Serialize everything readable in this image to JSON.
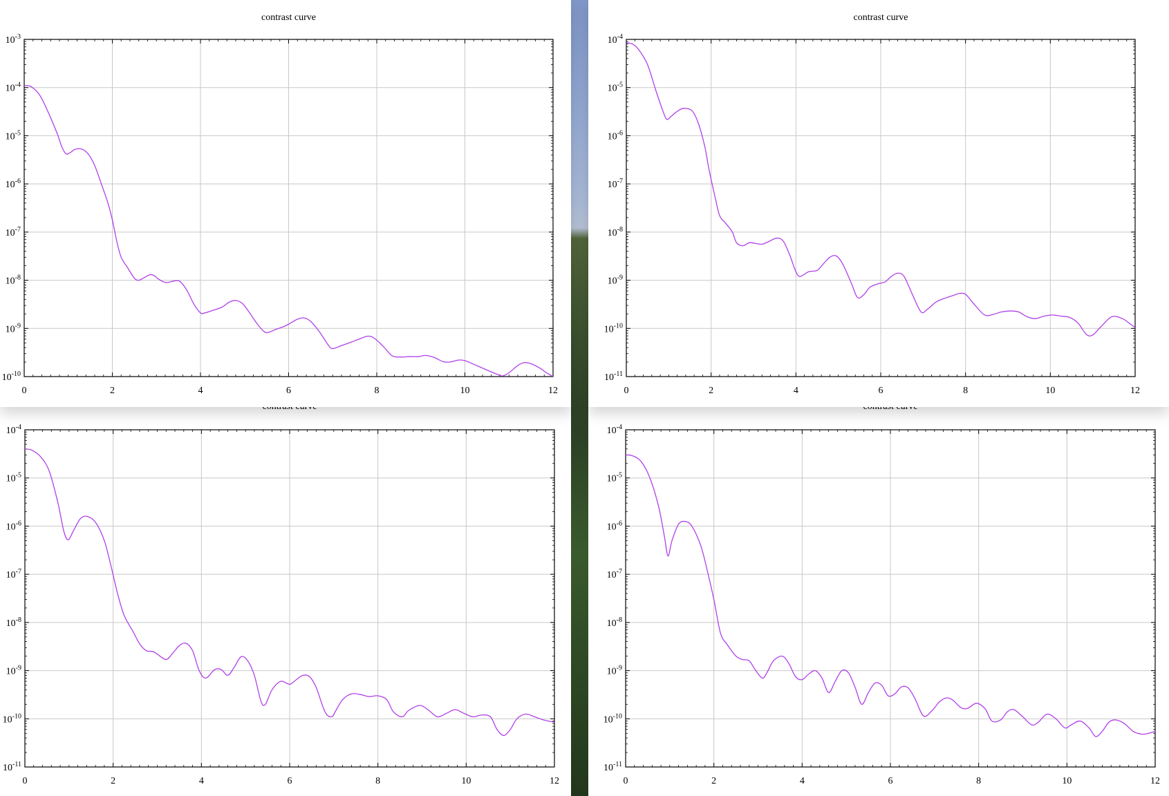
{
  "colors": {
    "curve": "#b040e8",
    "grid": "#c8c8c8",
    "axis": "#000000"
  },
  "chart_data": [
    {
      "id": "top-left",
      "type": "line",
      "title": "contrast curve",
      "xlabel": "",
      "ylabel": "",
      "xlim": [
        0,
        12
      ],
      "xticks": [
        "0",
        "2",
        "4",
        "6",
        "8",
        "10",
        "12"
      ],
      "yscale": "log",
      "ylim_exp": [
        -10,
        -3
      ],
      "yticks": [
        {
          "base": "10",
          "exp": "-3"
        },
        {
          "base": "10",
          "exp": "-4"
        },
        {
          "base": "10",
          "exp": "-5"
        },
        {
          "base": "10",
          "exp": "-6"
        },
        {
          "base": "10",
          "exp": "-7"
        },
        {
          "base": "10",
          "exp": "-8"
        },
        {
          "base": "10",
          "exp": "-9"
        },
        {
          "base": "10",
          "exp": "-10"
        }
      ],
      "grid": true,
      "series": [
        {
          "x": [
            0,
            0.15,
            0.35,
            0.55,
            0.75,
            0.85,
            0.95,
            1.05,
            1.15,
            1.3,
            1.45,
            1.6,
            1.75,
            1.9,
            2.0,
            2.1,
            2.2,
            2.35,
            2.5,
            2.6,
            2.7,
            2.85,
            2.95,
            3.05,
            3.2,
            3.3,
            3.45,
            3.55,
            3.7,
            3.85,
            4.0,
            4.1,
            4.3,
            4.5,
            4.65,
            4.8,
            4.95,
            5.1,
            5.3,
            5.45,
            5.55,
            5.7,
            5.9,
            6.05,
            6.2,
            6.35,
            6.5,
            6.7,
            6.9,
            7.0,
            7.2,
            7.4,
            7.6,
            7.8,
            7.95,
            8.15,
            8.35,
            8.55,
            8.75,
            8.95,
            9.1,
            9.3,
            9.5,
            9.65,
            9.85,
            10.0,
            10.2,
            10.4,
            10.6,
            10.75,
            10.85,
            11.0,
            11.2,
            11.35,
            11.5,
            11.7,
            11.85,
            12.0
          ],
          "y": [
            0.00011,
            0.000105,
            7e-05,
            3e-05,
            1.1e-05,
            6e-06,
            4.2e-06,
            4.5e-06,
            5.2e-06,
            5.3e-06,
            4.2e-06,
            2.4e-06,
            1e-06,
            4e-07,
            1.8e-07,
            6.5e-08,
            3e-08,
            1.8e-08,
            1.1e-08,
            1e-08,
            1.1e-08,
            1.3e-08,
            1.25e-08,
            1.05e-08,
            9e-09,
            9.2e-09,
            9.8e-09,
            9.2e-09,
            6e-09,
            3.2e-09,
            2.1e-09,
            2.1e-09,
            2.4e-09,
            2.8e-09,
            3.5e-09,
            3.8e-09,
            3.3e-09,
            2.2e-09,
            1.2e-09,
            8.5e-10,
            8.3e-10,
            9.5e-10,
            1.1e-09,
            1.3e-09,
            1.55e-09,
            1.65e-09,
            1.4e-09,
            8.5e-10,
            4.5e-10,
            3.8e-10,
            4.4e-10,
            5.1e-10,
            6e-10,
            6.9e-10,
            6.2e-10,
            4.2e-10,
            2.7e-10,
            2.55e-10,
            2.6e-10,
            2.6e-10,
            2.75e-10,
            2.5e-10,
            2.05e-10,
            2e-10,
            2.2e-10,
            2.15e-10,
            1.8e-10,
            1.5e-10,
            1.25e-10,
            1.1e-10,
            1.03e-10,
            1.2e-10,
            1.7e-10,
            1.95e-10,
            1.85e-10,
            1.5e-10,
            1.2e-10,
            1e-10
          ]
        }
      ]
    },
    {
      "id": "top-right",
      "type": "line",
      "title": "contrast curve",
      "xlabel": "",
      "ylabel": "",
      "xlim": [
        0,
        12
      ],
      "xticks": [
        "0",
        "2",
        "4",
        "6",
        "8",
        "10",
        "12"
      ],
      "yscale": "log",
      "ylim_exp": [
        -11,
        -4
      ],
      "yticks": [
        {
          "base": "10",
          "exp": "-4"
        },
        {
          "base": "10",
          "exp": "-5"
        },
        {
          "base": "10",
          "exp": "-6"
        },
        {
          "base": "10",
          "exp": "-7"
        },
        {
          "base": "10",
          "exp": "-8"
        },
        {
          "base": "10",
          "exp": "-9"
        },
        {
          "base": "10",
          "exp": "-10"
        },
        {
          "base": "10",
          "exp": "-11"
        }
      ],
      "grid": true,
      "series": [
        {
          "x": [
            0,
            0.15,
            0.3,
            0.5,
            0.7,
            0.85,
            0.95,
            1.05,
            1.2,
            1.35,
            1.55,
            1.7,
            1.85,
            1.95,
            2.1,
            2.2,
            2.35,
            2.5,
            2.6,
            2.75,
            2.9,
            3.05,
            3.2,
            3.35,
            3.55,
            3.7,
            3.85,
            4.0,
            4.1,
            4.3,
            4.5,
            4.65,
            4.8,
            4.95,
            5.1,
            5.3,
            5.45,
            5.6,
            5.75,
            5.95,
            6.1,
            6.25,
            6.4,
            6.55,
            6.75,
            6.95,
            7.1,
            7.3,
            7.5,
            7.7,
            7.85,
            8.0,
            8.2,
            8.45,
            8.65,
            8.85,
            9.05,
            9.25,
            9.45,
            9.65,
            9.85,
            10.05,
            10.25,
            10.45,
            10.65,
            10.85,
            11.0,
            11.2,
            11.45,
            11.7,
            11.85,
            12.0
          ],
          "y": [
            8.5e-05,
            8e-05,
            6e-05,
            3e-05,
            8.5e-06,
            3.5e-06,
            2.2e-06,
            2.5e-06,
            3.2e-06,
            3.7e-06,
            3.3e-06,
            1.8e-06,
            6e-07,
            2e-07,
            5e-08,
            2.2e-08,
            1.5e-08,
            1e-08,
            6e-09,
            5.2e-09,
            6e-09,
            5.8e-09,
            5.6e-09,
            6.3e-09,
            7.5e-09,
            6.5e-09,
            3.4e-09,
            1.5e-09,
            1.2e-09,
            1.5e-09,
            1.6e-09,
            2.2e-09,
            3e-09,
            3.2e-09,
            2.2e-09,
            9e-10,
            4.4e-10,
            5e-10,
            7.2e-10,
            8.5e-10,
            9.2e-10,
            1.2e-09,
            1.4e-09,
            1.2e-09,
            5e-10,
            2.2e-10,
            2.5e-10,
            3.5e-10,
            4.2e-10,
            4.8e-10,
            5.3e-10,
            5.1e-10,
            3.2e-10,
            1.9e-10,
            1.95e-10,
            2.2e-10,
            2.3e-10,
            2.2e-10,
            1.75e-10,
            1.6e-10,
            1.8e-10,
            1.9e-10,
            1.8e-10,
            1.7e-10,
            1.3e-10,
            7.5e-11,
            7.3e-11,
            1.1e-10,
            1.75e-10,
            1.6e-10,
            1.3e-10,
            1.05e-10
          ]
        }
      ]
    },
    {
      "id": "bottom-left",
      "type": "line",
      "title": "contrast curve",
      "xlabel": "",
      "ylabel": "",
      "xlim": [
        0,
        12
      ],
      "xticks": [
        "0",
        "2",
        "4",
        "6",
        "8",
        "10",
        "12"
      ],
      "yscale": "log",
      "ylim_exp": [
        -11,
        -4
      ],
      "yticks": [
        {
          "base": "10",
          "exp": "-4"
        },
        {
          "base": "10",
          "exp": "-5"
        },
        {
          "base": "10",
          "exp": "-6"
        },
        {
          "base": "10",
          "exp": "-7"
        },
        {
          "base": "10",
          "exp": "-8"
        },
        {
          "base": "10",
          "exp": "-9"
        },
        {
          "base": "10",
          "exp": "-10"
        },
        {
          "base": "10",
          "exp": "-11"
        }
      ],
      "grid": true,
      "series": [
        {
          "x": [
            0,
            0.15,
            0.35,
            0.55,
            0.75,
            0.88,
            0.98,
            1.1,
            1.25,
            1.4,
            1.6,
            1.8,
            1.95,
            2.1,
            2.25,
            2.45,
            2.6,
            2.75,
            2.9,
            3.0,
            3.2,
            3.35,
            3.5,
            3.65,
            3.8,
            3.95,
            4.1,
            4.3,
            4.45,
            4.6,
            4.75,
            4.9,
            5.05,
            5.2,
            5.35,
            5.45,
            5.6,
            5.8,
            6.0,
            6.15,
            6.3,
            6.45,
            6.6,
            6.8,
            6.95,
            7.05,
            7.2,
            7.4,
            7.6,
            7.8,
            8.0,
            8.2,
            8.35,
            8.55,
            8.7,
            8.95,
            9.15,
            9.35,
            9.55,
            9.75,
            9.95,
            10.15,
            10.35,
            10.55,
            10.7,
            10.85,
            11.0,
            11.15,
            11.35,
            11.55,
            11.75,
            12.0
          ],
          "y": [
            4e-05,
            3.8e-05,
            2.8e-05,
            1.4e-05,
            3e-06,
            8e-07,
            5.2e-07,
            8e-07,
            1.4e-06,
            1.6e-06,
            1.2e-06,
            5e-07,
            1.5e-07,
            4e-08,
            1.4e-08,
            6.5e-09,
            3.6e-09,
            2.6e-09,
            2.5e-09,
            2.2e-09,
            1.7e-09,
            2.3e-09,
            3.3e-09,
            3.7e-09,
            2.6e-09,
            1e-09,
            7e-10,
            1.05e-09,
            1.05e-09,
            8e-10,
            1.2e-09,
            1.95e-09,
            1.6e-09,
            8e-10,
            2.3e-10,
            2e-10,
            4e-10,
            6e-10,
            5.2e-10,
            6.5e-10,
            8e-10,
            7.5e-10,
            4.5e-10,
            1.4e-10,
            1.1e-10,
            1.5e-10,
            2.5e-10,
            3.3e-10,
            3.2e-10,
            2.9e-10,
            3e-10,
            2.5e-10,
            1.4e-10,
            1.1e-10,
            1.5e-10,
            1.9e-10,
            1.5e-10,
            1.1e-10,
            1.3e-10,
            1.55e-10,
            1.3e-10,
            1.1e-10,
            1.2e-10,
            1.1e-10,
            6e-11,
            4.5e-11,
            6e-11,
            1e-10,
            1.25e-10,
            1.1e-10,
            9.5e-11,
            8.5e-11
          ]
        }
      ]
    },
    {
      "id": "bottom-right",
      "type": "line",
      "title": "contrast curve",
      "xlabel": "",
      "ylabel": "",
      "xlim": [
        0,
        12
      ],
      "xticks": [
        "0",
        "2",
        "4",
        "6",
        "8",
        "10",
        "12"
      ],
      "yscale": "log",
      "ylim_exp": [
        -11,
        -4
      ],
      "yticks": [
        {
          "base": "10",
          "exp": "-4"
        },
        {
          "base": "10",
          "exp": "-5"
        },
        {
          "base": "10",
          "exp": "-6"
        },
        {
          "base": "10",
          "exp": "-7"
        },
        {
          "base": "10",
          "exp": "-8"
        },
        {
          "base": "10",
          "exp": "-9"
        },
        {
          "base": "10",
          "exp": "-10"
        },
        {
          "base": "10",
          "exp": "-11"
        }
      ],
      "grid": true,
      "series": [
        {
          "x": [
            0,
            0.15,
            0.35,
            0.55,
            0.75,
            0.88,
            0.96,
            1.05,
            1.2,
            1.35,
            1.5,
            1.7,
            1.85,
            2.0,
            2.15,
            2.3,
            2.5,
            2.65,
            2.8,
            2.95,
            3.1,
            3.2,
            3.35,
            3.55,
            3.7,
            3.85,
            4.0,
            4.15,
            4.3,
            4.45,
            4.6,
            4.75,
            4.9,
            5.05,
            5.2,
            5.35,
            5.5,
            5.65,
            5.8,
            5.95,
            6.1,
            6.25,
            6.4,
            6.55,
            6.75,
            6.95,
            7.1,
            7.25,
            7.4,
            7.6,
            7.75,
            7.95,
            8.15,
            8.3,
            8.5,
            8.65,
            8.8,
            9.0,
            9.2,
            9.35,
            9.55,
            9.75,
            9.95,
            10.1,
            10.3,
            10.5,
            10.65,
            10.8,
            10.95,
            11.1,
            11.3,
            11.5,
            11.7,
            11.85,
            12.0
          ],
          "y": [
            3e-05,
            2.9e-05,
            2.2e-05,
            1e-05,
            2.5e-06,
            6e-07,
            2.4e-07,
            5e-07,
            1.1e-06,
            1.25e-06,
            1e-06,
            4e-07,
            1.2e-07,
            3e-08,
            6e-09,
            3.5e-09,
            2e-09,
            1.7e-09,
            1.6e-09,
            1e-09,
            7e-10,
            9e-10,
            1.6e-09,
            2e-09,
            1.4e-09,
            7.5e-10,
            6.5e-10,
            8.5e-10,
            1e-09,
            7e-10,
            3.5e-10,
            6e-10,
            1e-09,
            9e-10,
            4.5e-10,
            2e-10,
            3.5e-10,
            5.5e-10,
            5e-10,
            3e-10,
            3.3e-10,
            4.6e-10,
            4.4e-10,
            2.7e-10,
            1.15e-10,
            1.5e-10,
            2.2e-10,
            2.7e-10,
            2.5e-10,
            1.7e-10,
            1.65e-10,
            2.1e-10,
            1.6e-10,
            9e-11,
            9.5e-11,
            1.4e-10,
            1.55e-10,
            1.1e-10,
            7.5e-11,
            8.5e-11,
            1.25e-10,
            1e-10,
            6.5e-11,
            7.5e-11,
            9e-11,
            6.5e-11,
            4.3e-11,
            5.5e-11,
            8.5e-11,
            9.5e-11,
            8e-11,
            5.5e-11,
            4.8e-11,
            5e-11,
            5.5e-11
          ]
        }
      ]
    }
  ]
}
